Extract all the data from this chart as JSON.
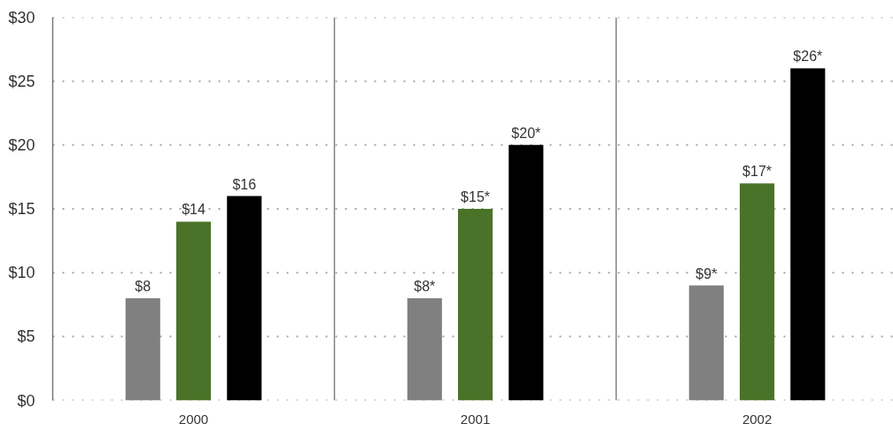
{
  "chart_data": {
    "type": "bar",
    "categories": [
      "2000",
      "2001",
      "2002"
    ],
    "series": [
      {
        "color": "#808080",
        "values": [
          8,
          8,
          9
        ],
        "value_labels": [
          "$8",
          "$8*",
          "$9*"
        ]
      },
      {
        "color": "#4a7329",
        "values": [
          14,
          15,
          17
        ],
        "value_labels": [
          "$14",
          "$15*",
          "$17*"
        ]
      },
      {
        "color": "#000000",
        "values": [
          16,
          20,
          26
        ],
        "value_labels": [
          "$16",
          "$20*",
          "$26*"
        ]
      }
    ],
    "ylim": [
      0,
      30
    ],
    "yticks": [
      {
        "value": 0,
        "label": "$0"
      },
      {
        "value": 5,
        "label": "$5"
      },
      {
        "value": 10,
        "label": "$10"
      },
      {
        "value": 15,
        "label": "$15"
      },
      {
        "value": 20,
        "label": "$20"
      },
      {
        "value": 25,
        "label": "$25"
      },
      {
        "value": 30,
        "label": "$30"
      }
    ],
    "grid": true
  }
}
